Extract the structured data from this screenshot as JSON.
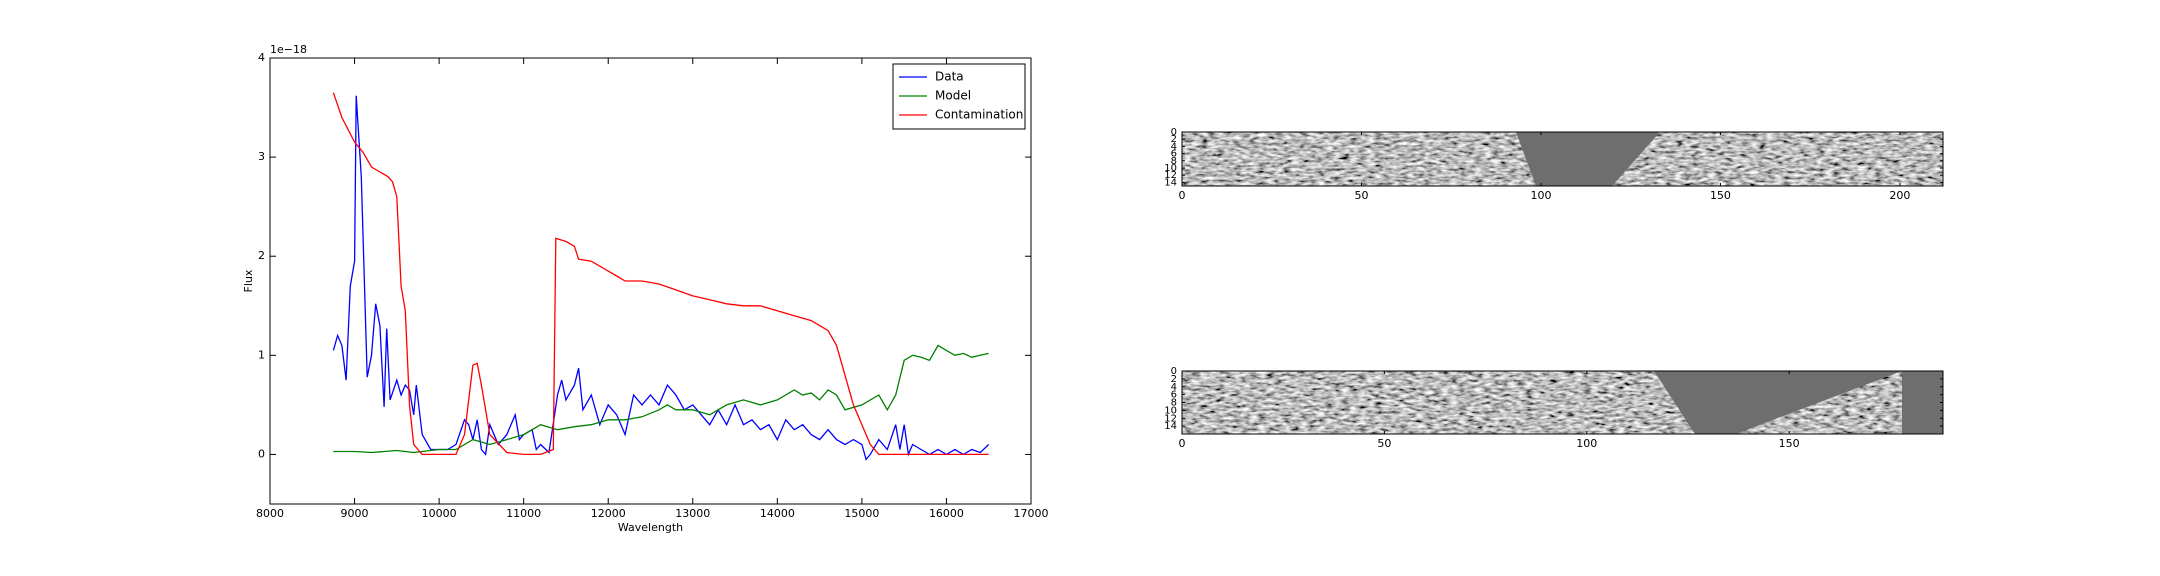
{
  "chart_data": [
    {
      "type": "line",
      "offset_text": "1e−18",
      "xlabel": "Wavelength",
      "ylabel": "Flux",
      "xlim": [
        8000,
        17000
      ],
      "ylim": [
        -0.5,
        4
      ],
      "xticks": [
        8000,
        9000,
        10000,
        11000,
        12000,
        13000,
        14000,
        15000,
        16000,
        17000
      ],
      "yticks": [
        0,
        1,
        2,
        3,
        4
      ],
      "legend": "upper right",
      "series": [
        {
          "name": "Data",
          "color": "#0000ff",
          "x": [
            8750,
            8800,
            8850,
            8900,
            8950,
            9000,
            9020,
            9080,
            9150,
            9200,
            9250,
            9300,
            9350,
            9380,
            9420,
            9500,
            9550,
            9600,
            9650,
            9700,
            9730,
            9800,
            9900,
            10000,
            10100,
            10200,
            10300,
            10350,
            10400,
            10450,
            10500,
            10550,
            10600,
            10700,
            10800,
            10900,
            10950,
            11000,
            11100,
            11150,
            11200,
            11300,
            11400,
            11450,
            11500,
            11600,
            11650,
            11700,
            11800,
            11900,
            12000,
            12100,
            12200,
            12300,
            12400,
            12500,
            12600,
            12700,
            12800,
            12900,
            13000,
            13100,
            13200,
            13300,
            13400,
            13500,
            13600,
            13700,
            13800,
            13900,
            14000,
            14100,
            14200,
            14300,
            14400,
            14500,
            14600,
            14700,
            14800,
            14900,
            15000,
            15050,
            15100,
            15200,
            15300,
            15400,
            15450,
            15500,
            15550,
            15600,
            15700,
            15800,
            15900,
            16000,
            16100,
            16200,
            16300,
            16400,
            16500
          ],
          "values": [
            1.05,
            1.2,
            1.1,
            0.75,
            1.7,
            1.95,
            3.62,
            2.8,
            0.78,
            1.0,
            1.52,
            1.3,
            0.48,
            1.27,
            0.55,
            0.75,
            0.6,
            0.7,
            0.65,
            0.4,
            0.7,
            0.2,
            0.05,
            0.05,
            0.05,
            0.1,
            0.35,
            0.3,
            0.15,
            0.35,
            0.05,
            0.0,
            0.3,
            0.1,
            0.2,
            0.4,
            0.15,
            0.2,
            0.25,
            0.05,
            0.1,
            0.02,
            0.6,
            0.75,
            0.55,
            0.7,
            0.87,
            0.45,
            0.6,
            0.3,
            0.5,
            0.4,
            0.2,
            0.6,
            0.5,
            0.6,
            0.5,
            0.7,
            0.6,
            0.45,
            0.5,
            0.4,
            0.3,
            0.45,
            0.3,
            0.5,
            0.3,
            0.35,
            0.25,
            0.3,
            0.15,
            0.35,
            0.25,
            0.3,
            0.2,
            0.15,
            0.25,
            0.15,
            0.1,
            0.15,
            0.1,
            -0.05,
            0.0,
            0.15,
            0.05,
            0.3,
            0.05,
            0.3,
            0.0,
            0.1,
            0.05,
            0.0,
            0.05,
            0.0,
            0.05,
            0.0,
            0.05,
            0.02,
            0.1
          ]
        },
        {
          "name": "Model",
          "color": "#008000",
          "x": [
            8750,
            9000,
            9200,
            9500,
            9700,
            10000,
            10200,
            10400,
            10600,
            10800,
            11000,
            11200,
            11400,
            11600,
            11800,
            12000,
            12200,
            12400,
            12600,
            12700,
            12800,
            13000,
            13200,
            13400,
            13600,
            13800,
            14000,
            14200,
            14300,
            14400,
            14500,
            14600,
            14700,
            14800,
            15000,
            15200,
            15300,
            15400,
            15500,
            15600,
            15700,
            15800,
            15900,
            16000,
            16100,
            16200,
            16300,
            16400,
            16500
          ],
          "values": [
            0.03,
            0.03,
            0.02,
            0.04,
            0.02,
            0.05,
            0.05,
            0.15,
            0.1,
            0.15,
            0.2,
            0.3,
            0.25,
            0.28,
            0.3,
            0.35,
            0.35,
            0.38,
            0.45,
            0.5,
            0.45,
            0.45,
            0.4,
            0.5,
            0.55,
            0.5,
            0.55,
            0.65,
            0.6,
            0.62,
            0.55,
            0.65,
            0.6,
            0.45,
            0.5,
            0.6,
            0.45,
            0.6,
            0.95,
            1.0,
            0.98,
            0.95,
            1.1,
            1.05,
            1.0,
            1.02,
            0.98,
            1.0,
            1.02
          ]
        },
        {
          "name": "Contamination",
          "color": "#ff0000",
          "x": [
            8750,
            8850,
            9000,
            9100,
            9200,
            9300,
            9400,
            9450,
            9500,
            9550,
            9600,
            9650,
            9700,
            9800,
            10000,
            10200,
            10300,
            10400,
            10450,
            10500,
            10600,
            10800,
            11000,
            11200,
            11350,
            11380,
            11500,
            11600,
            11650,
            11800,
            12000,
            12100,
            12200,
            12400,
            12600,
            12800,
            13000,
            13200,
            13400,
            13600,
            13800,
            14000,
            14200,
            14400,
            14500,
            14600,
            14700,
            14800,
            14900,
            15000,
            15100,
            15200,
            15400,
            16000,
            16500
          ],
          "values": [
            3.65,
            3.4,
            3.15,
            3.05,
            2.9,
            2.85,
            2.8,
            2.75,
            2.6,
            1.7,
            1.45,
            0.5,
            0.1,
            0.0,
            0.0,
            0.0,
            0.2,
            0.9,
            0.92,
            0.7,
            0.2,
            0.02,
            0.0,
            0.0,
            0.05,
            2.18,
            2.15,
            2.1,
            1.97,
            1.95,
            1.85,
            1.8,
            1.75,
            1.75,
            1.72,
            1.66,
            1.6,
            1.56,
            1.52,
            1.5,
            1.5,
            1.45,
            1.4,
            1.35,
            1.3,
            1.25,
            1.1,
            0.8,
            0.5,
            0.3,
            0.1,
            0.0,
            0.0,
            0.0,
            0.0
          ]
        }
      ]
    },
    {
      "type": "image",
      "xlim": [
        0,
        212
      ],
      "ylim": [
        0,
        15
      ],
      "xticks": [
        0,
        50,
        100,
        150,
        200
      ],
      "yticks": [
        0,
        2,
        4,
        6,
        8,
        10,
        12,
        14
      ]
    },
    {
      "type": "image",
      "xlim": [
        0,
        188
      ],
      "ylim": [
        0,
        16
      ],
      "xticks": [
        0,
        50,
        100,
        150
      ],
      "yticks": [
        0,
        2,
        4,
        6,
        8,
        10,
        12,
        14
      ]
    }
  ]
}
